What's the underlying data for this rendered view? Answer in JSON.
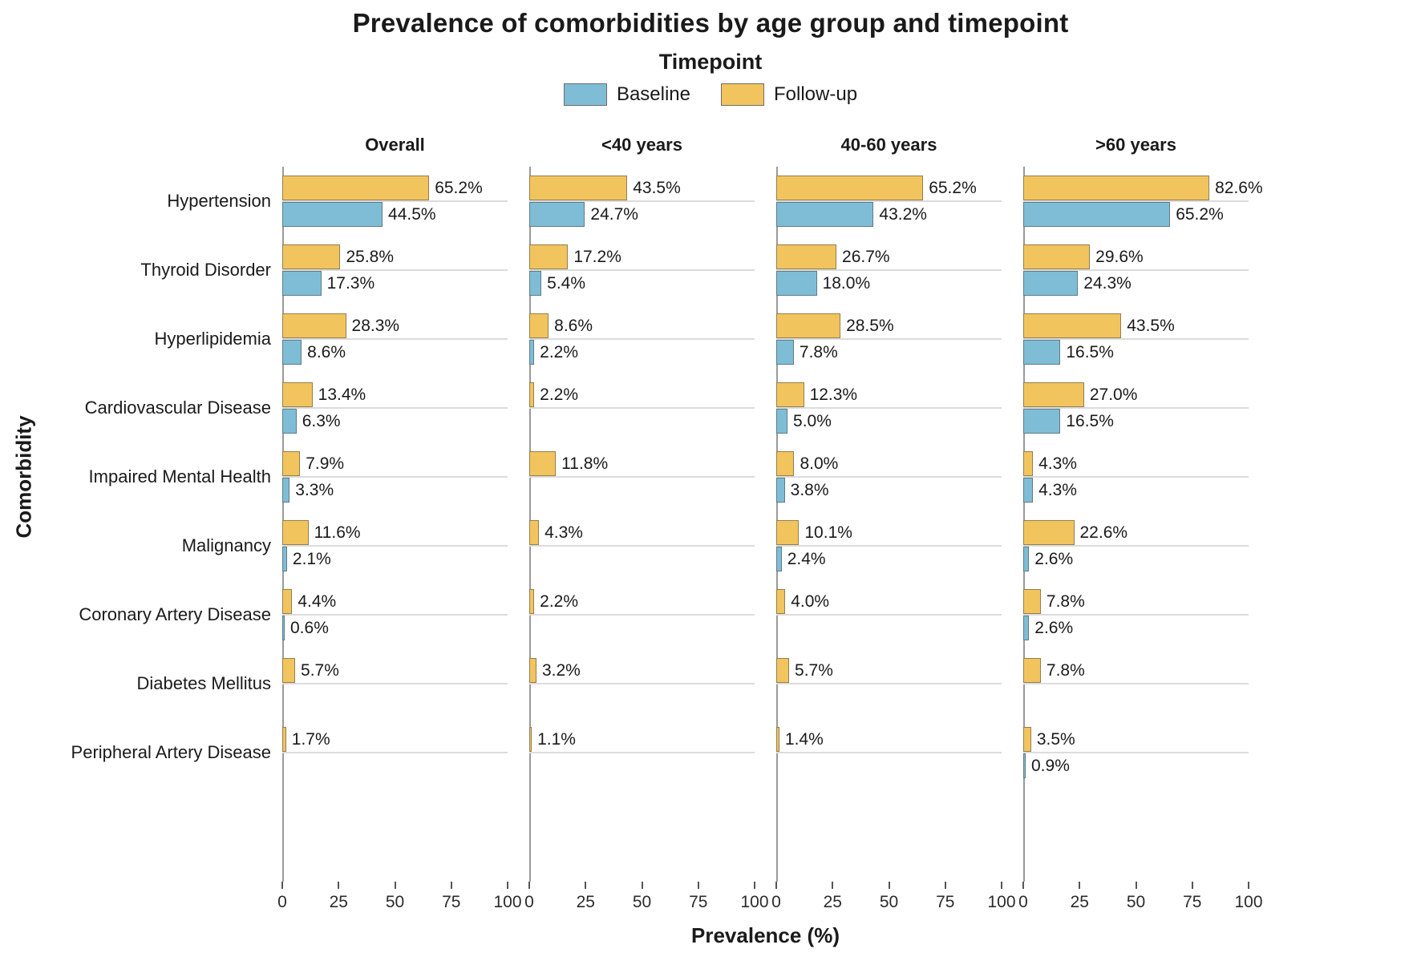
{
  "title": "Prevalence of comorbidities by age group and timepoint",
  "legend": {
    "title": "Timepoint",
    "items": [
      {
        "label": "Baseline",
        "color": "#7FBDD6"
      },
      {
        "label": "Follow-up",
        "color": "#F2C45E"
      }
    ]
  },
  "colors": {
    "baseline_fill": "#7FBDD6",
    "followup_fill": "#F2C45E",
    "bar_stroke": "rgba(70,70,70,0.55)",
    "gridline": "#dcdcdc",
    "axis_line": "#9a9a9a",
    "text": "#1a1a1a"
  },
  "chart_data": {
    "type": "bar",
    "orientation": "horizontal",
    "title": "Prevalence of comorbidities by age group and timepoint",
    "xlabel": "Prevalence (%)",
    "ylabel": "Comorbidity",
    "xlim": [
      0,
      100
    ],
    "xticks": [
      0,
      25,
      50,
      75,
      100
    ],
    "grid": "horizontal gridline per category",
    "legend_position": "top",
    "legend_title": "Timepoint",
    "series_names": [
      "Follow-up",
      "Baseline"
    ],
    "value_label_format": "{value}%",
    "categories": [
      "Hypertension",
      "Thyroid Disorder",
      "Hyperlipidemia",
      "Cardiovascular Disease",
      "Impaired Mental Health",
      "Malignancy",
      "Coronary Artery Disease",
      "Diabetes Mellitus",
      "Peripheral Artery Disease"
    ],
    "facets": [
      {
        "label": "Overall",
        "follow_up": [
          65.2,
          25.8,
          28.3,
          13.4,
          7.9,
          11.6,
          4.4,
          5.7,
          1.7
        ],
        "baseline": [
          44.5,
          17.3,
          8.6,
          6.3,
          3.3,
          2.1,
          0.6,
          null,
          null
        ]
      },
      {
        "label": "<40 years",
        "follow_up": [
          43.5,
          17.2,
          8.6,
          2.2,
          11.8,
          4.3,
          2.2,
          3.2,
          1.1
        ],
        "baseline": [
          24.7,
          5.4,
          2.2,
          null,
          null,
          null,
          null,
          null,
          null
        ]
      },
      {
        "label": "40-60 years",
        "follow_up": [
          65.2,
          26.7,
          28.5,
          12.3,
          8.0,
          10.1,
          4.0,
          5.7,
          1.4
        ],
        "baseline": [
          43.2,
          18.0,
          7.8,
          5.0,
          3.8,
          2.4,
          null,
          null,
          null
        ]
      },
      {
        "label": ">60 years",
        "follow_up": [
          82.6,
          29.6,
          43.5,
          27.0,
          4.3,
          22.6,
          7.8,
          7.8,
          3.5
        ],
        "baseline": [
          65.2,
          24.3,
          16.5,
          16.5,
          4.3,
          2.6,
          2.6,
          null,
          0.9
        ]
      }
    ]
  }
}
